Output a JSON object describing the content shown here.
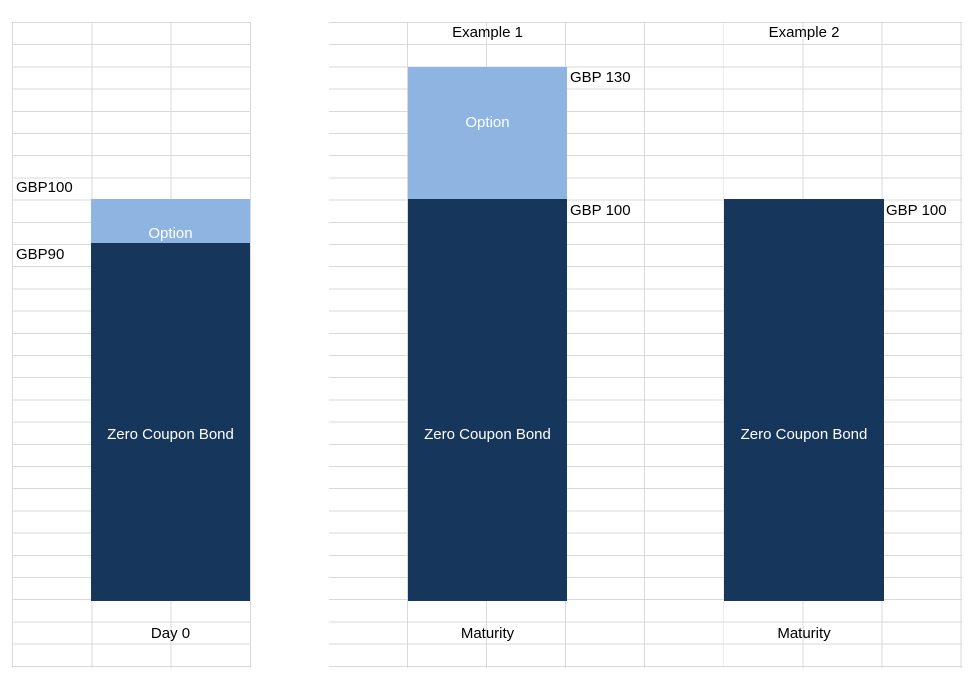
{
  "colors": {
    "bond_fill": "#17365C",
    "option_fill": "#8EB4E2",
    "gridline": "#D9D9D9",
    "label_text": "#000000",
    "bar_label_text": "#FFFFFF"
  },
  "panels": {
    "day0": {
      "axis_label": "Day 0",
      "total_label": "GBP100",
      "bond_value_label": "GBP90",
      "option_label": "Option",
      "bond_label": "Zero Coupon Bond"
    },
    "example1": {
      "title": "Example 1",
      "axis_label": "Maturity",
      "total_label": "GBP 130",
      "bond_value_label": "GBP 100",
      "option_label": "Option",
      "bond_label": "Zero Coupon Bond"
    },
    "example2": {
      "title": "Example 2",
      "axis_label": "Maturity",
      "total_label": "GBP 100",
      "bond_label": "Zero Coupon Bond"
    }
  },
  "chart_data": {
    "type": "bar",
    "subtype": "stacked",
    "title": "",
    "categories": [
      "Day 0",
      "Maturity (Example 1)",
      "Maturity (Example 2)"
    ],
    "panel_titles": [
      "",
      "Example 1",
      "Example 2"
    ],
    "series": [
      {
        "name": "Zero Coupon Bond",
        "color": "#17365C",
        "values": [
          90,
          100,
          100
        ]
      },
      {
        "name": "Option",
        "color": "#8EB4E2",
        "values": [
          10,
          30,
          0
        ]
      }
    ],
    "annotations": [
      {
        "category": "Day 0",
        "labels": [
          "GBP100",
          "GBP90"
        ]
      },
      {
        "category": "Maturity (Example 1)",
        "labels": [
          "GBP 130",
          "GBP 100"
        ]
      },
      {
        "category": "Maturity (Example 2)",
        "labels": [
          "GBP 100"
        ]
      }
    ],
    "unit": "GBP",
    "ylim": [
      0,
      150
    ],
    "grid": true,
    "legend": false
  }
}
